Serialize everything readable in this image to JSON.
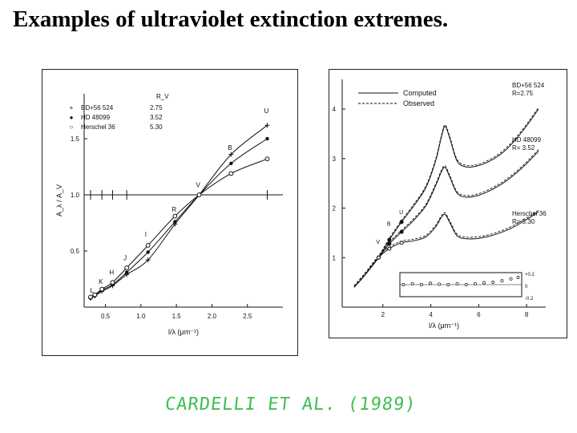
{
  "title": "Examples of ultraviolet extinction extremes.",
  "credit": "CARDELLI ET AL. (1989)",
  "chart_data": [
    {
      "type": "line",
      "xlabel": "l/λ (μm⁻¹)",
      "ylabel": "A_λ / A_V",
      "xlim": [
        0.2,
        3.0
      ],
      "ylim": [
        0,
        1.9
      ],
      "xticks": [
        "0.5",
        "1.0",
        "1.5",
        "2.0",
        "2.5"
      ],
      "yticks": [
        "0.5",
        "1.0",
        "1.5"
      ],
      "legend": {
        "position": "top-left",
        "header": "R_V",
        "entries": [
          {
            "marker": "+",
            "name": "BD+56 524",
            "value": "2.75"
          },
          {
            "marker": "●",
            "name": "HD 48099",
            "value": "3.52"
          },
          {
            "marker": "○",
            "name": "Herschel 36",
            "value": "5.30"
          }
        ]
      },
      "band_labels": [
        {
          "text": "L",
          "x": 0.33,
          "y": 0.1
        },
        {
          "text": "K",
          "x": 0.45,
          "y": 0.18
        },
        {
          "text": "H",
          "x": 0.6,
          "y": 0.26
        },
        {
          "text": "J",
          "x": 0.8,
          "y": 0.39
        },
        {
          "text": "I",
          "x": 1.1,
          "y": 0.6
        },
        {
          "text": "R",
          "x": 1.48,
          "y": 0.82
        },
        {
          "text": "V",
          "x": 1.82,
          "y": 1.04
        },
        {
          "text": "B",
          "x": 2.27,
          "y": 1.37
        },
        {
          "text": "U",
          "x": 2.78,
          "y": 1.7
        }
      ],
      "series": [
        {
          "name": "BD+56 524",
          "marker": "plus",
          "x": [
            0.29,
            0.35,
            0.45,
            0.6,
            0.8,
            1.1,
            1.48,
            1.82,
            2.27,
            2.78
          ],
          "y": [
            0.08,
            0.1,
            0.14,
            0.19,
            0.29,
            0.42,
            0.74,
            1.0,
            1.36,
            1.62
          ]
        },
        {
          "name": "HD 48099",
          "marker": "filled",
          "x": [
            0.29,
            0.35,
            0.45,
            0.6,
            0.8,
            1.1,
            1.48,
            1.82,
            2.27,
            2.78
          ],
          "y": [
            0.08,
            0.1,
            0.15,
            0.2,
            0.31,
            0.49,
            0.76,
            1.0,
            1.28,
            1.5
          ]
        },
        {
          "name": "Herschel 36",
          "marker": "open",
          "x": [
            0.29,
            0.35,
            0.45,
            0.6,
            0.8,
            1.1,
            1.48,
            1.82,
            2.27,
            2.78
          ],
          "y": [
            0.09,
            0.11,
            0.16,
            0.22,
            0.35,
            0.55,
            0.81,
            1.0,
            1.19,
            1.32
          ]
        }
      ],
      "reference_line": {
        "y": 1.0
      },
      "error_bars_x": [
        0.29,
        0.45,
        0.6,
        0.8,
        2.78
      ],
      "grid": false
    },
    {
      "type": "line",
      "xlabel": "l/λ (μm⁻¹)",
      "ylabel": "A_λ / A_V",
      "xlim": [
        0.3,
        8.8
      ],
      "ylim": [
        0,
        4.6
      ],
      "xticks": [
        "2",
        "4",
        "6",
        "8"
      ],
      "yticks": [
        "1",
        "2",
        "3",
        "4"
      ],
      "legend": {
        "position": "top-left",
        "entries": [
          {
            "style": "solid",
            "name": "Computed"
          },
          {
            "style": "dashed",
            "name": "Observed"
          }
        ]
      },
      "band_labels": [
        {
          "text": "U",
          "x": 2.78,
          "y": 1.78
        },
        {
          "text": "B",
          "x": 2.27,
          "y": 1.55
        },
        {
          "text": "V",
          "x": 1.82,
          "y": 1.18
        }
      ],
      "series": [
        {
          "name": "BD+56 524",
          "label": "BD+56 524\nR=2.75",
          "x": [
            0.8,
            1.2,
            1.82,
            2.27,
            2.78,
            3.3,
            3.8,
            4.2,
            4.45,
            4.6,
            4.8,
            5.1,
            5.5,
            6.0,
            6.5,
            7.0,
            7.5,
            8.0,
            8.5
          ],
          "y": [
            0.4,
            0.62,
            1.0,
            1.36,
            1.72,
            2.05,
            2.42,
            2.95,
            3.45,
            3.65,
            3.4,
            2.95,
            2.83,
            2.86,
            2.96,
            3.12,
            3.36,
            3.66,
            4.0
          ]
        },
        {
          "name": "HD 48099",
          "label": "HD 48099\nR= 3.52",
          "x": [
            0.8,
            1.2,
            1.82,
            2.27,
            2.78,
            3.3,
            3.8,
            4.2,
            4.45,
            4.6,
            4.8,
            5.1,
            5.5,
            6.0,
            6.5,
            7.0,
            7.5,
            8.0,
            8.5
          ],
          "y": [
            0.4,
            0.62,
            1.0,
            1.28,
            1.52,
            1.76,
            2.05,
            2.45,
            2.74,
            2.82,
            2.62,
            2.3,
            2.22,
            2.26,
            2.36,
            2.5,
            2.68,
            2.9,
            3.15
          ]
        },
        {
          "name": "Herschel 36",
          "label": "Herschel 36\nR= 5.30",
          "x": [
            0.8,
            1.2,
            1.82,
            2.27,
            2.78,
            3.3,
            3.8,
            4.2,
            4.45,
            4.6,
            4.8,
            5.1,
            5.5,
            6.0,
            6.5,
            7.0,
            7.5,
            8.0,
            8.5
          ],
          "y": [
            0.4,
            0.62,
            1.0,
            1.18,
            1.3,
            1.34,
            1.42,
            1.62,
            1.82,
            1.87,
            1.7,
            1.44,
            1.38,
            1.39,
            1.44,
            1.52,
            1.63,
            1.77,
            1.92
          ]
        }
      ],
      "inset": {
        "yticks": [
          "+0.2",
          "0",
          "-0.2"
        ],
        "x": [
          2.0,
          2.5,
          3.0,
          3.5,
          4.0,
          4.5,
          5.0,
          5.5,
          6.0,
          6.5,
          7.0,
          7.5,
          8.0,
          8.4
        ],
        "y": [
          0.0,
          0.02,
          0.0,
          0.03,
          0.01,
          0.0,
          0.02,
          0.0,
          0.02,
          0.04,
          0.05,
          0.08,
          0.12,
          0.15
        ]
      },
      "grid": false
    }
  ]
}
